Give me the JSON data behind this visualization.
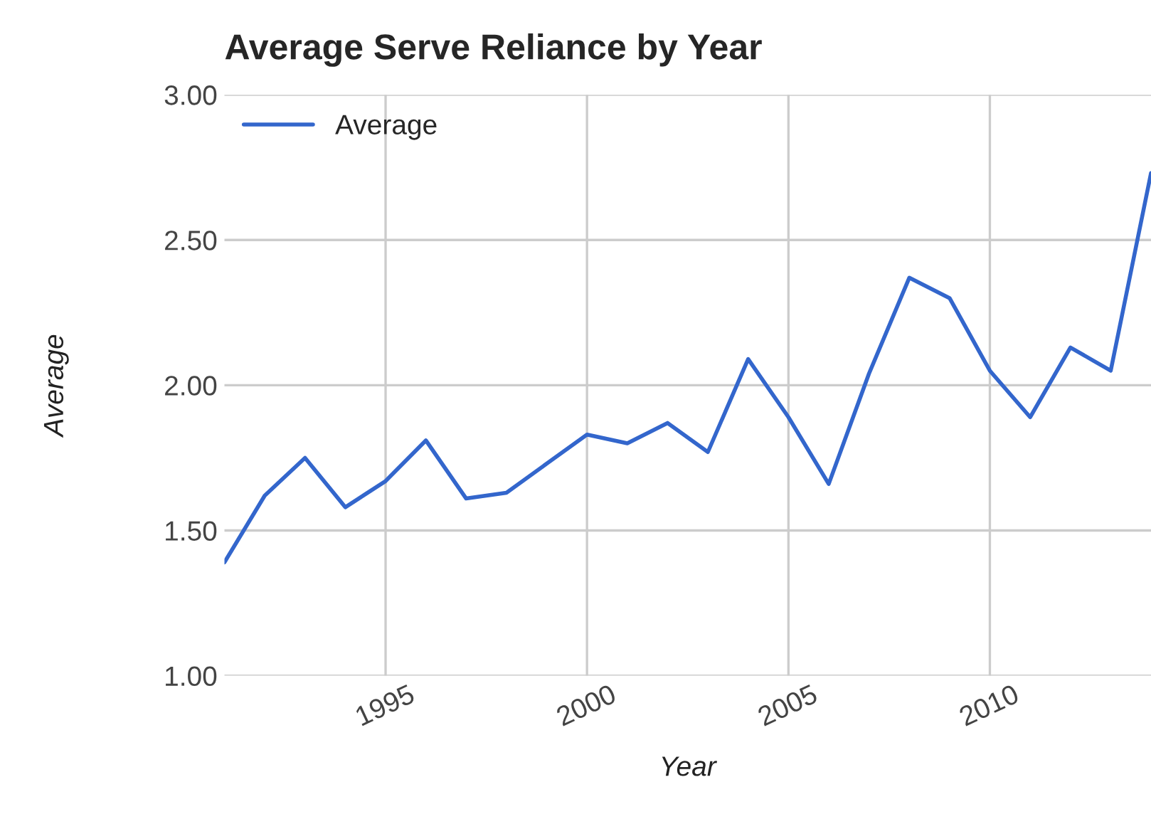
{
  "chart_data": {
    "type": "line",
    "title": "Average Serve Reliance by Year",
    "xlabel": "Year",
    "ylabel": "Average",
    "x": [
      1991,
      1992,
      1993,
      1994,
      1995,
      1996,
      1997,
      1998,
      1999,
      2000,
      2001,
      2002,
      2003,
      2004,
      2005,
      2006,
      2007,
      2008,
      2009,
      2010,
      2011,
      2012,
      2013,
      2014
    ],
    "series": [
      {
        "name": "Average",
        "color": "#3366cc",
        "values": [
          1.39,
          1.62,
          1.75,
          1.58,
          1.67,
          1.81,
          1.61,
          1.63,
          1.73,
          1.83,
          1.8,
          1.87,
          1.77,
          2.09,
          1.89,
          1.66,
          2.04,
          2.37,
          2.3,
          2.05,
          1.89,
          2.13,
          2.05,
          2.73
        ]
      }
    ],
    "xlim": [
      1991,
      2014
    ],
    "ylim": [
      1.0,
      3.0
    ],
    "xticks": [
      1995,
      2000,
      2005,
      2010
    ],
    "yticks": [
      {
        "value": 1.0,
        "label": "1.00"
      },
      {
        "value": 1.5,
        "label": "1.50"
      },
      {
        "value": 2.0,
        "label": "2.00"
      },
      {
        "value": 2.5,
        "label": "2.50"
      },
      {
        "value": 3.0,
        "label": "3.00"
      }
    ],
    "grid": true,
    "legend": "top left",
    "marker": "none",
    "line_style": "solid"
  }
}
